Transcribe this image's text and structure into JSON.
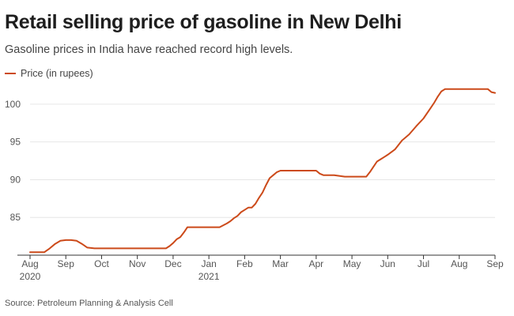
{
  "colors": {
    "line": "#cc4a1a",
    "grid": "#e6e6e6",
    "axis": "#333333",
    "tick_label": "#555555"
  },
  "chart_data": {
    "type": "line",
    "title": "Retail selling price of gasoline in New Delhi",
    "subtitle": "Gasoline prices in India have reached record high levels.",
    "source": "Source: Petroleum Planning & Analysis Cell",
    "legend": {
      "entries": [
        "Price (in rupees)"
      ],
      "position": "top-left"
    },
    "xlabel": "",
    "ylabel": "",
    "xlim": [
      0,
      13
    ],
    "ylim": [
      80,
      102.5
    ],
    "grid": {
      "x": false,
      "y": true
    },
    "yticks": [
      85,
      90,
      95,
      100
    ],
    "xticks": [
      {
        "label": "Aug",
        "label2": "2020",
        "value": 0
      },
      {
        "label": "Sep",
        "value": 1
      },
      {
        "label": "Oct",
        "value": 2
      },
      {
        "label": "Nov",
        "value": 3
      },
      {
        "label": "Dec",
        "value": 4
      },
      {
        "label": "Jan",
        "label2": "2021",
        "value": 5
      },
      {
        "label": "Feb",
        "value": 6
      },
      {
        "label": "Mar",
        "value": 7
      },
      {
        "label": "Apr",
        "value": 8
      },
      {
        "label": "May",
        "value": 9
      },
      {
        "label": "Jun",
        "value": 10
      },
      {
        "label": "Jul",
        "value": 11
      },
      {
        "label": "Aug",
        "value": 12
      },
      {
        "label": "Sep",
        "value": 13
      }
    ],
    "series": [
      {
        "name": "Price (in rupees)",
        "x": [
          0,
          0.4,
          0.55,
          0.7,
          0.85,
          1.0,
          1.15,
          1.3,
          1.45,
          1.6,
          1.8,
          2.5,
          3.5,
          3.8,
          3.9,
          4.0,
          4.1,
          4.2,
          4.3,
          4.4,
          4.5,
          4.6,
          5.0,
          5.3,
          5.5,
          5.6,
          5.7,
          5.8,
          5.9,
          6.0,
          6.1,
          6.2,
          6.3,
          6.4,
          6.5,
          6.6,
          6.7,
          6.8,
          6.9,
          7.0,
          7.1,
          7.2,
          7.3,
          7.5,
          8.0,
          8.1,
          8.2,
          8.5,
          8.8,
          9.0,
          9.4,
          9.5,
          9.6,
          9.7,
          9.8,
          9.9,
          10.0,
          10.2,
          10.4,
          10.6,
          10.8,
          11.0,
          11.2,
          11.3,
          11.4,
          11.5,
          11.6,
          11.8,
          12.0,
          12.2,
          12.5,
          12.8,
          12.9,
          13.0
        ],
        "values": [
          80.4,
          80.4,
          80.9,
          81.5,
          81.9,
          82.0,
          82.0,
          81.9,
          81.5,
          81.0,
          80.9,
          80.9,
          80.9,
          80.9,
          81.2,
          81.6,
          82.1,
          82.4,
          83.0,
          83.7,
          83.7,
          83.7,
          83.7,
          83.7,
          84.2,
          84.5,
          84.9,
          85.2,
          85.7,
          86.0,
          86.3,
          86.3,
          86.8,
          87.6,
          88.3,
          89.3,
          90.2,
          90.6,
          91.0,
          91.2,
          91.2,
          91.2,
          91.2,
          91.2,
          91.2,
          90.8,
          90.6,
          90.6,
          90.4,
          90.4,
          90.4,
          91.0,
          91.7,
          92.4,
          92.7,
          93.0,
          93.3,
          94.0,
          95.2,
          96.0,
          97.1,
          98.1,
          99.5,
          100.2,
          101.0,
          101.7,
          102.0,
          102.0,
          102.0,
          102.0,
          102.0,
          102.0,
          101.6,
          101.5
        ]
      }
    ]
  }
}
